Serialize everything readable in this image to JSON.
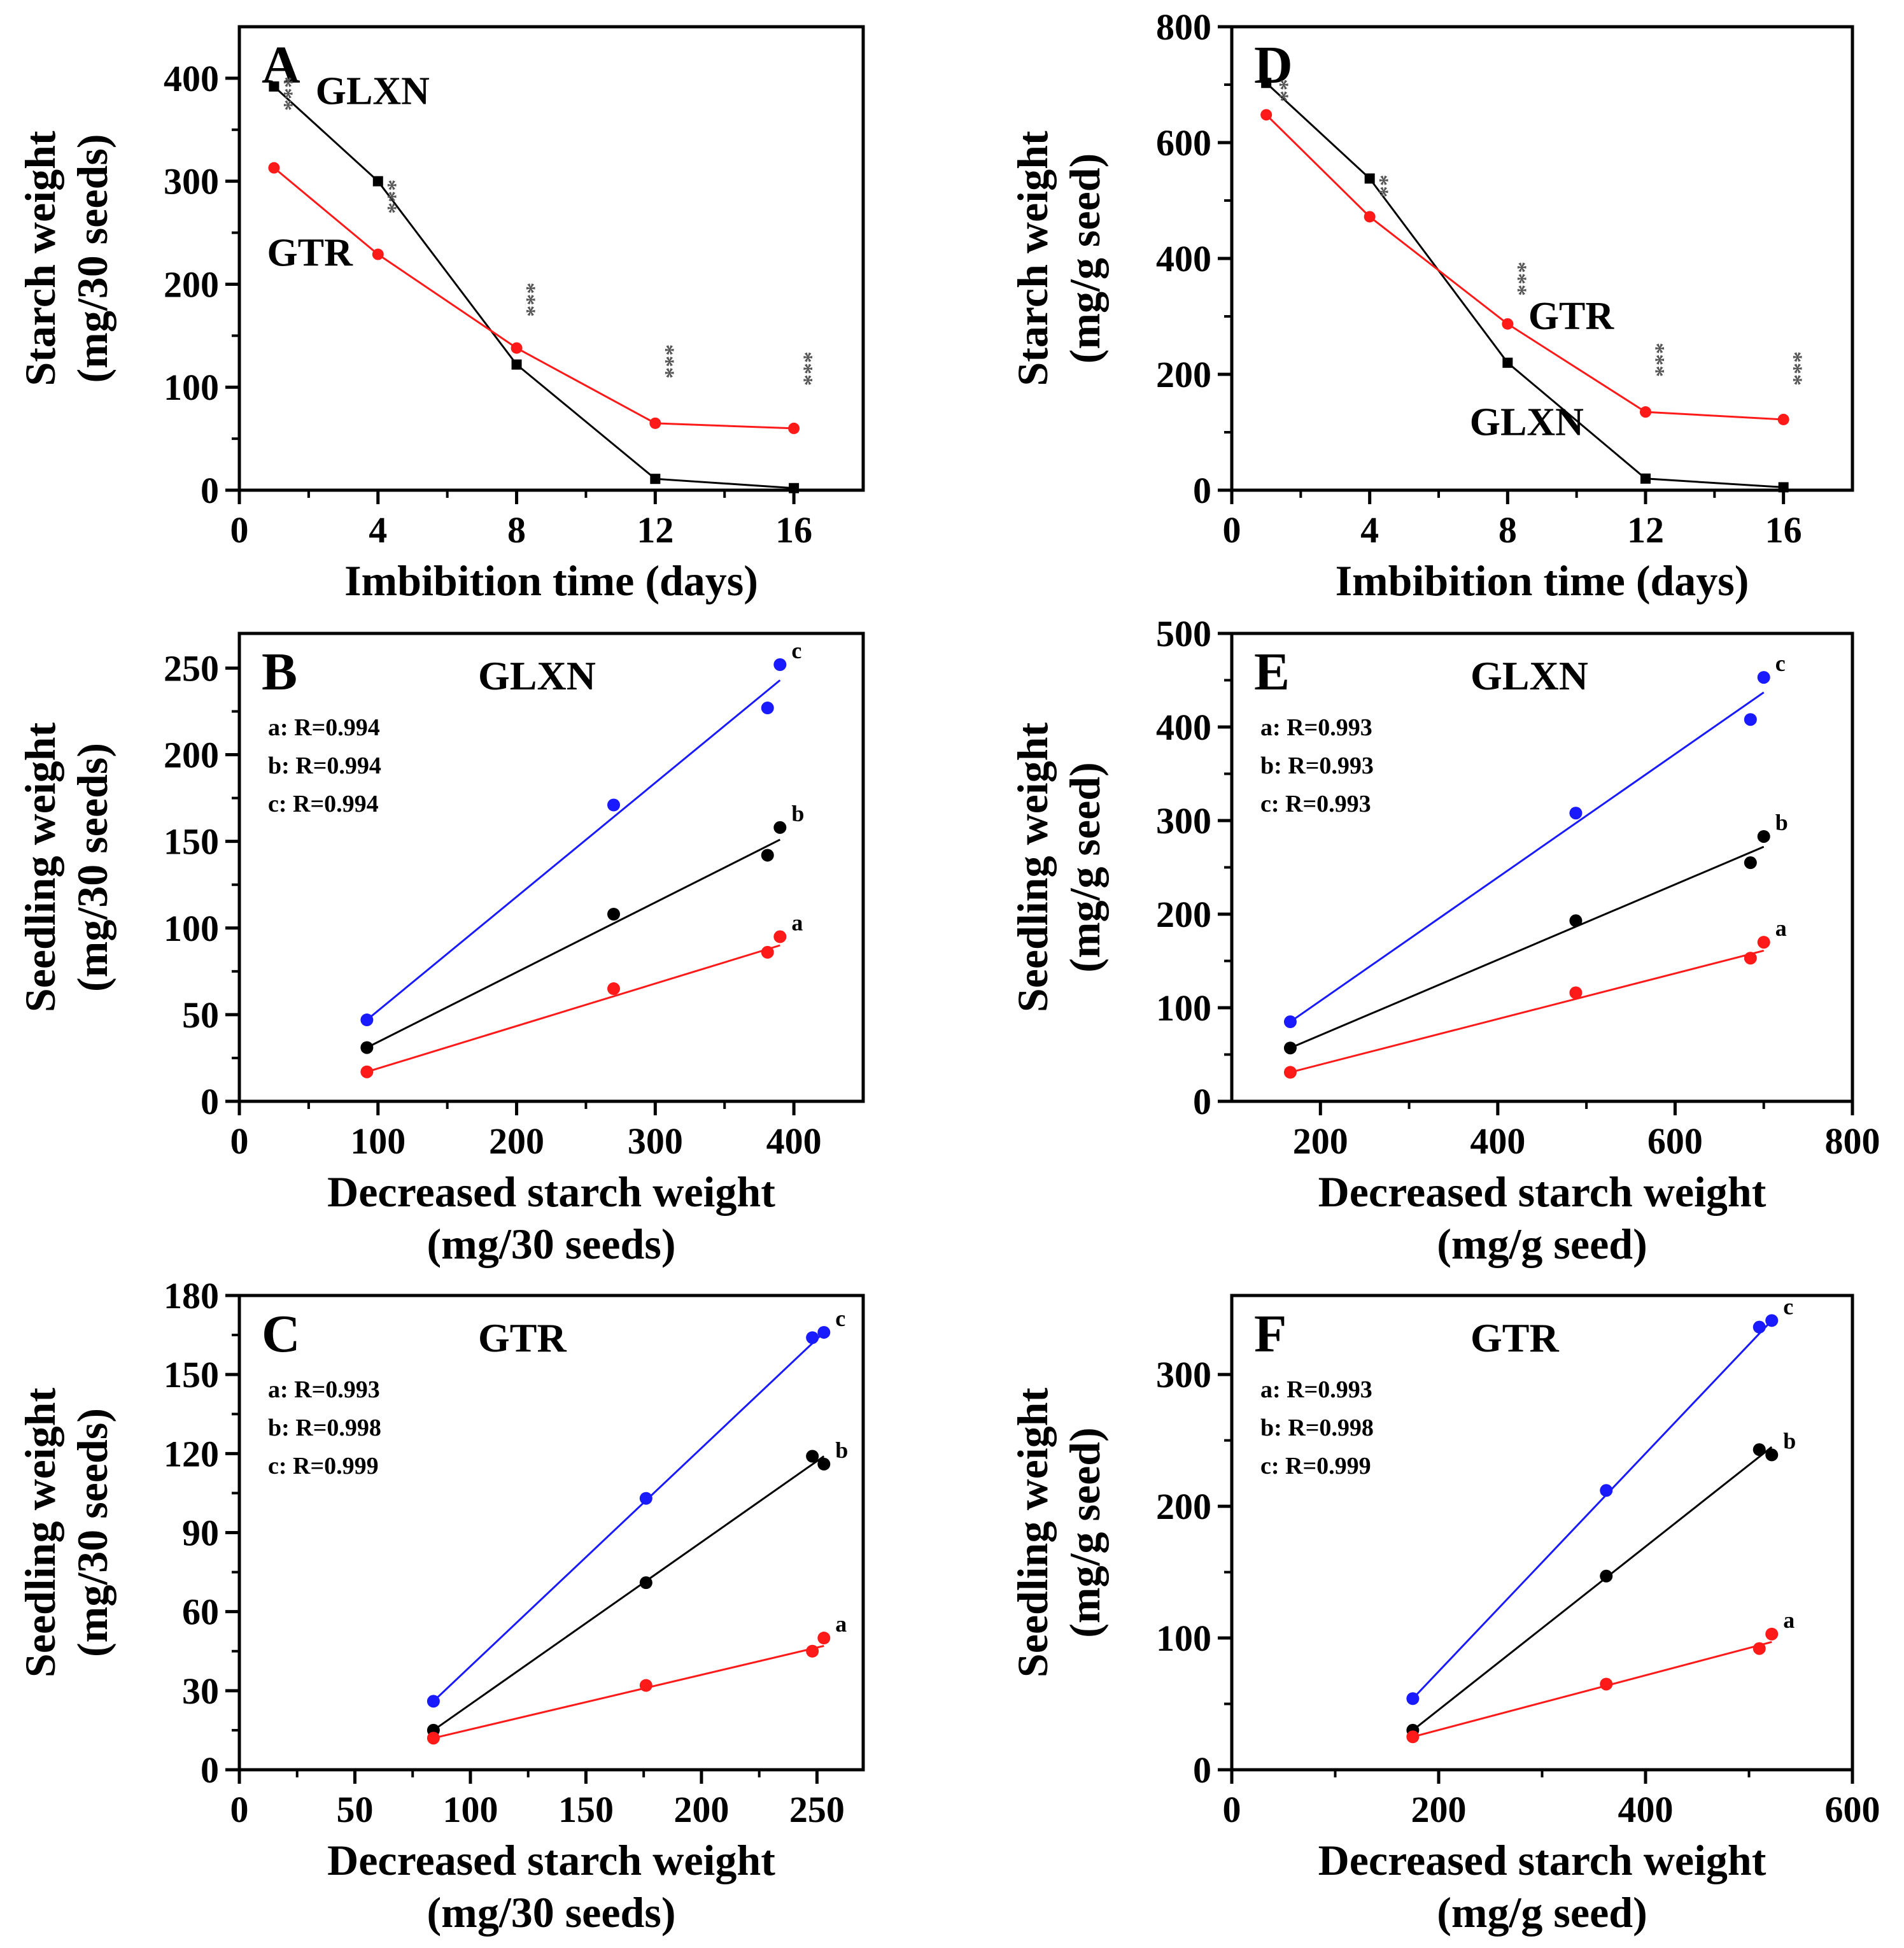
{
  "colors": {
    "gtr": "#ff1a1a",
    "glxn": "#000000",
    "a": "#ff1a1a",
    "b": "#000000",
    "c": "#1a1aff"
  },
  "labels": {
    "ylabel_starch_30": [
      "Starch weight",
      "(mg/30 seeds)"
    ],
    "ylabel_starch_g": [
      "Starch weight",
      "(mg/g seed)"
    ],
    "ylabel_seedling_30": [
      "Seedling weight",
      "(mg/30 seeds)"
    ],
    "ylabel_seedling_g": [
      "Seedling weight",
      "(mg/g seed)"
    ],
    "xlabel_time": [
      "Imbibition time (days)"
    ],
    "xlabel_dec_30": [
      "Decreased starch weight",
      "(mg/30 seeds)"
    ],
    "xlabel_dec_g": [
      "Decreased starch weight",
      "(mg/g seed)"
    ]
  },
  "chart_data": [
    {
      "id": "A",
      "type": "line",
      "letter": "A",
      "xlabel_key": "xlabel_time",
      "ylabel_key": "ylabel_starch_30",
      "xlim": [
        0,
        18
      ],
      "ylim": [
        0,
        450
      ],
      "xticks": [
        0,
        4,
        8,
        12,
        16
      ],
      "yticks": [
        0,
        100,
        200,
        300,
        400
      ],
      "series": [
        {
          "name": "GLXN",
          "color": "#000000",
          "marker": "square",
          "x": [
            1,
            4,
            8,
            12,
            16
          ],
          "y": [
            392,
            300,
            122,
            11,
            2
          ]
        },
        {
          "name": "GTR",
          "color": "#ff1a1a",
          "marker": "circle",
          "x": [
            1,
            4,
            8,
            12,
            16
          ],
          "y": [
            313,
            229,
            138,
            65,
            60
          ]
        }
      ],
      "series_labels": [
        {
          "text": "GLXN",
          "x": 2.2,
          "y": 375
        },
        {
          "text": "GTR",
          "x": 0.8,
          "y": 218
        }
      ],
      "significance": [
        {
          "text": "***",
          "x": 1.1,
          "y": 385
        },
        {
          "text": "***",
          "x": 4.1,
          "y": 285
        },
        {
          "text": "***",
          "x": 8.1,
          "y": 185
        },
        {
          "text": "***",
          "x": 12.1,
          "y": 125
        },
        {
          "text": "***",
          "x": 16.1,
          "y": 118
        }
      ]
    },
    {
      "id": "D",
      "type": "line",
      "letter": "D",
      "xlabel_key": "xlabel_time",
      "ylabel_key": "ylabel_starch_g",
      "xlim": [
        0,
        18
      ],
      "ylim": [
        0,
        800
      ],
      "xticks": [
        0,
        4,
        8,
        12,
        16
      ],
      "yticks": [
        0,
        200,
        400,
        600,
        800
      ],
      "series": [
        {
          "name": "GLXN",
          "color": "#000000",
          "marker": "square",
          "x": [
            1,
            4,
            8,
            12,
            16
          ],
          "y": [
            703,
            538,
            220,
            20,
            5
          ]
        },
        {
          "name": "GTR",
          "color": "#ff1a1a",
          "marker": "circle",
          "x": [
            1,
            4,
            8,
            12,
            16
          ],
          "y": [
            648,
            472,
            287,
            135,
            122
          ]
        }
      ],
      "series_labels": [
        {
          "text": "GTR",
          "x": 8.6,
          "y": 278
        },
        {
          "text": "GLXN",
          "x": 6.9,
          "y": 95
        }
      ],
      "significance": [
        {
          "text": "**",
          "x": 1.2,
          "y": 690
        },
        {
          "text": "**",
          "x": 4.1,
          "y": 525
        },
        {
          "text": "***",
          "x": 8.1,
          "y": 365
        },
        {
          "text": "***",
          "x": 12.1,
          "y": 225
        },
        {
          "text": "***",
          "x": 16.1,
          "y": 210
        }
      ]
    },
    {
      "id": "B",
      "type": "scatter",
      "letter": "B",
      "title": "GLXN",
      "xlabel_key": "xlabel_dec_30",
      "ylabel_key": "ylabel_seedling_30",
      "xlim": [
        0,
        450
      ],
      "ylim": [
        0,
        270
      ],
      "xticks": [
        0,
        100,
        200,
        300,
        400
      ],
      "yticks": [
        0,
        50,
        100,
        150,
        200,
        250
      ],
      "stats": [
        "a: R=0.994",
        "b: R=0.994",
        "c: R=0.994"
      ],
      "series": [
        {
          "name": "c",
          "color": "#1a1aff",
          "x": [
            92,
            270,
            381,
            390
          ],
          "y": [
            47,
            171,
            227,
            252
          ],
          "fit": [
            [
              92,
              47
            ],
            [
              390,
              243
            ]
          ]
        },
        {
          "name": "b",
          "color": "#000000",
          "x": [
            92,
            270,
            381,
            390
          ],
          "y": [
            31,
            108,
            142,
            158
          ],
          "fit": [
            [
              92,
              31
            ],
            [
              390,
              151
            ]
          ]
        },
        {
          "name": "a",
          "color": "#ff1a1a",
          "x": [
            92,
            270,
            381,
            390
          ],
          "y": [
            17,
            65,
            86,
            95
          ],
          "fit": [
            [
              92,
              17
            ],
            [
              390,
              90
            ]
          ]
        }
      ]
    },
    {
      "id": "E",
      "type": "scatter",
      "letter": "E",
      "title": "GLXN",
      "xlabel_key": "xlabel_dec_g",
      "ylabel_key": "ylabel_seedling_g",
      "xlim": [
        100,
        800
      ],
      "ylim": [
        0,
        500
      ],
      "xticks": [
        200,
        400,
        600,
        800
      ],
      "yticks": [
        0,
        100,
        200,
        300,
        400,
        500
      ],
      "stats": [
        "a: R=0.993",
        "b: R=0.993",
        "c: R=0.993"
      ],
      "series": [
        {
          "name": "c",
          "color": "#1a1aff",
          "x": [
            166,
            488,
            685,
            700
          ],
          "y": [
            85,
            308,
            408,
            453
          ],
          "fit": [
            [
              166,
              85
            ],
            [
              700,
              437
            ]
          ]
        },
        {
          "name": "b",
          "color": "#000000",
          "x": [
            166,
            488,
            685,
            700
          ],
          "y": [
            57,
            193,
            255,
            283
          ],
          "fit": [
            [
              166,
              57
            ],
            [
              700,
              272
            ]
          ]
        },
        {
          "name": "a",
          "color": "#ff1a1a",
          "x": [
            166,
            488,
            685,
            700
          ],
          "y": [
            31,
            116,
            153,
            170
          ],
          "fit": [
            [
              166,
              31
            ],
            [
              700,
              161
            ]
          ]
        }
      ]
    },
    {
      "id": "C",
      "type": "scatter",
      "letter": "C",
      "title": "GTR",
      "xlabel_key": "xlabel_dec_30",
      "ylabel_key": "ylabel_seedling_30",
      "xlim": [
        0,
        270
      ],
      "ylim": [
        0,
        180
      ],
      "xticks": [
        0,
        50,
        100,
        150,
        200,
        250
      ],
      "yticks": [
        0,
        30,
        60,
        90,
        120,
        150,
        180
      ],
      "stats": [
        "a: R=0.993",
        "b: R=0.998",
        "c: R=0.999"
      ],
      "series": [
        {
          "name": "c",
          "color": "#1a1aff",
          "x": [
            84,
            176,
            248,
            253
          ],
          "y": [
            26,
            103,
            164,
            166
          ],
          "fit": [
            [
              84,
              26
            ],
            [
              253,
              166
            ]
          ]
        },
        {
          "name": "b",
          "color": "#000000",
          "x": [
            84,
            176,
            248,
            253
          ],
          "y": [
            15,
            71,
            119,
            116
          ],
          "fit": [
            [
              84,
              15
            ],
            [
              253,
              119
            ]
          ]
        },
        {
          "name": "a",
          "color": "#ff1a1a",
          "x": [
            84,
            176,
            248,
            253
          ],
          "y": [
            12,
            32,
            45,
            50
          ],
          "fit": [
            [
              84,
              12
            ],
            [
              253,
              47
            ]
          ]
        }
      ]
    },
    {
      "id": "F",
      "type": "scatter",
      "letter": "F",
      "title": "GTR",
      "xlabel_key": "xlabel_dec_g",
      "ylabel_key": "ylabel_seedling_g",
      "xlim": [
        0,
        600
      ],
      "ylim": [
        0,
        360
      ],
      "xticks": [
        0,
        200,
        400,
        600
      ],
      "yticks": [
        0,
        100,
        200,
        300
      ],
      "stats": [
        "a: R=0.993",
        "b: R=0.998",
        "c: R=0.999"
      ],
      "series": [
        {
          "name": "c",
          "color": "#1a1aff",
          "x": [
            175,
            362,
            510,
            522
          ],
          "y": [
            54,
            212,
            336,
            341
          ],
          "fit": [
            [
              175,
              54
            ],
            [
              522,
              341
            ]
          ]
        },
        {
          "name": "b",
          "color": "#000000",
          "x": [
            175,
            362,
            510,
            522
          ],
          "y": [
            30,
            147,
            243,
            239
          ],
          "fit": [
            [
              175,
              30
            ],
            [
              522,
              245
            ]
          ]
        },
        {
          "name": "a",
          "color": "#ff1a1a",
          "x": [
            175,
            362,
            510,
            522
          ],
          "y": [
            25,
            65,
            92,
            103
          ],
          "fit": [
            [
              175,
              25
            ],
            [
              522,
              97
            ]
          ]
        }
      ]
    }
  ]
}
